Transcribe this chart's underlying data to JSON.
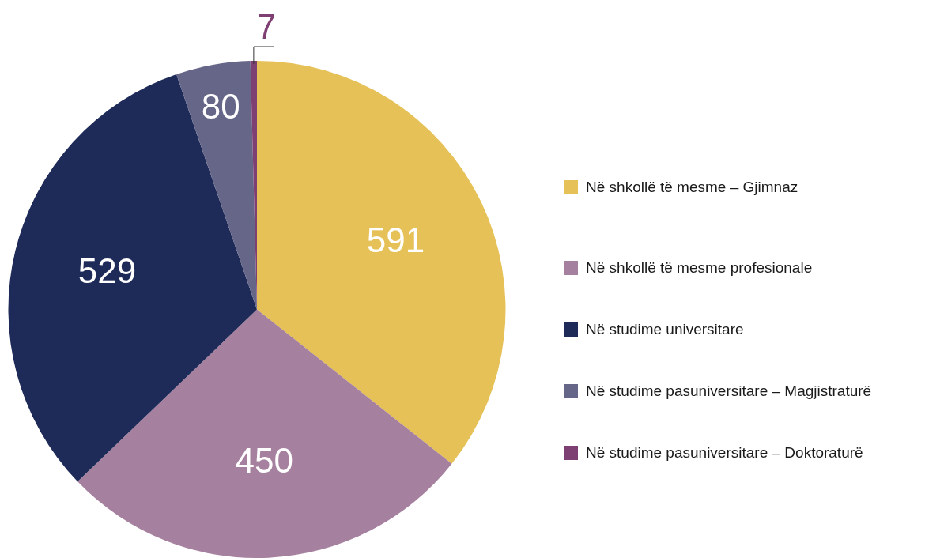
{
  "chart_data": {
    "type": "pie",
    "categories": [
      "Në shkollë të mesme – Gjimnaz",
      "Në shkollë të mesme profesionale",
      "Në studime universitare",
      "Në studime pasuniversitare – Magjistraturë",
      "Në studime pasuniversitare – Doktoraturë"
    ],
    "values": [
      591,
      450,
      529,
      80,
      7
    ],
    "colors": [
      "#e6c157",
      "#a6809f",
      "#1e2a58",
      "#656688",
      "#7e3f73"
    ],
    "data_labels": true,
    "legend": "right"
  }
}
